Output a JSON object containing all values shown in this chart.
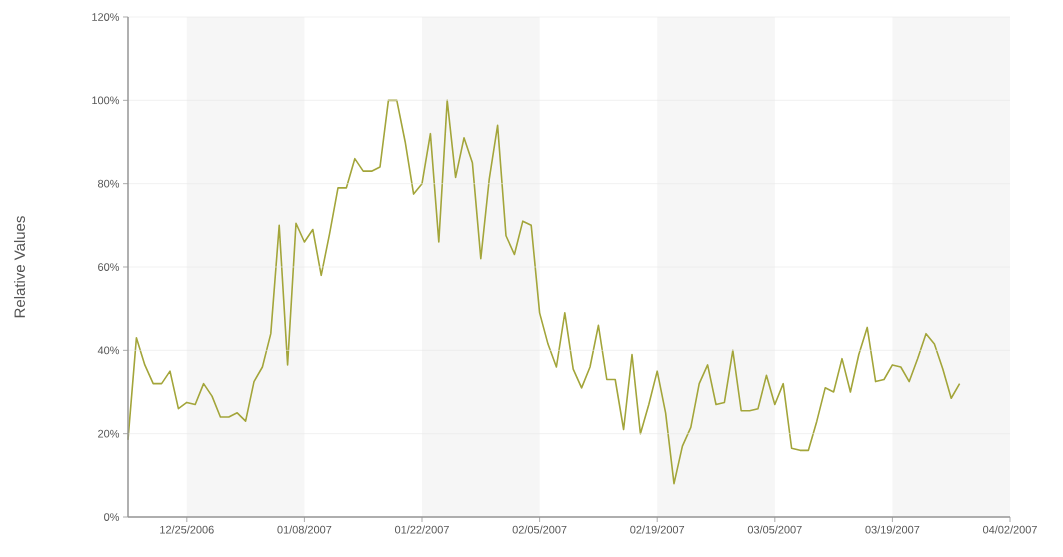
{
  "chart_data": {
    "type": "line",
    "ylabel": "Relative Values",
    "x": [
      "2006-12-18",
      "2006-12-19",
      "2006-12-20",
      "2006-12-21",
      "2006-12-22",
      "2006-12-23",
      "2006-12-24",
      "2006-12-25",
      "2006-12-26",
      "2006-12-27",
      "2006-12-28",
      "2006-12-29",
      "2006-12-30",
      "2006-12-31",
      "2007-01-01",
      "2007-01-02",
      "2007-01-03",
      "2007-01-04",
      "2007-01-05",
      "2007-01-06",
      "2007-01-07",
      "2007-01-08",
      "2007-01-09",
      "2007-01-10",
      "2007-01-11",
      "2007-01-12",
      "2007-01-13",
      "2007-01-14",
      "2007-01-15",
      "2007-01-16",
      "2007-01-17",
      "2007-01-18",
      "2007-01-19",
      "2007-01-20",
      "2007-01-21",
      "2007-01-22",
      "2007-01-23",
      "2007-01-24",
      "2007-01-25",
      "2007-01-26",
      "2007-01-27",
      "2007-01-28",
      "2007-01-29",
      "2007-01-30",
      "2007-01-31",
      "2007-02-01",
      "2007-02-02",
      "2007-02-03",
      "2007-02-04",
      "2007-02-05",
      "2007-02-06",
      "2007-02-07",
      "2007-02-08",
      "2007-02-09",
      "2007-02-10",
      "2007-02-11",
      "2007-02-12",
      "2007-02-13",
      "2007-02-14",
      "2007-02-15",
      "2007-02-16",
      "2007-02-17",
      "2007-02-18",
      "2007-02-19",
      "2007-02-20",
      "2007-02-21",
      "2007-02-22",
      "2007-02-23",
      "2007-02-24",
      "2007-02-25",
      "2007-02-26",
      "2007-02-27",
      "2007-02-28",
      "2007-03-01",
      "2007-03-02",
      "2007-03-03",
      "2007-03-04",
      "2007-03-05",
      "2007-03-06",
      "2007-03-07",
      "2007-03-08",
      "2007-03-09",
      "2007-03-10",
      "2007-03-11",
      "2007-03-12",
      "2007-03-13",
      "2007-03-14",
      "2007-03-15",
      "2007-03-16",
      "2007-03-17",
      "2007-03-18",
      "2007-03-19",
      "2007-03-20",
      "2007-03-21",
      "2007-03-22",
      "2007-03-23",
      "2007-03-24",
      "2007-03-25",
      "2007-03-26",
      "2007-03-27"
    ],
    "series": [
      {
        "color": "#a3a53a",
        "values": [
          18.5,
          43,
          36.5,
          32,
          32,
          35,
          26,
          27.5,
          27,
          32,
          29,
          24,
          24,
          25,
          23,
          32.5,
          36,
          44,
          70,
          36.5,
          70.5,
          66,
          69,
          58,
          68,
          79,
          79,
          86,
          83,
          83,
          84,
          100,
          100,
          90,
          77.5,
          80,
          92,
          66,
          100,
          81.5,
          91,
          85,
          62,
          81,
          94,
          67.5,
          63,
          71,
          70,
          49,
          41.5,
          36,
          49,
          35.5,
          31,
          36,
          46,
          33,
          33,
          21,
          39,
          20,
          27,
          35,
          25,
          8,
          17,
          21.5,
          32,
          36.5,
          27,
          27.5,
          40,
          25.5,
          25.5,
          26,
          34,
          27,
          32,
          16.5,
          16,
          16,
          23,
          31,
          30,
          38,
          30,
          39,
          45.5,
          32.5,
          33,
          36.5,
          36,
          32.5,
          38,
          44,
          41.5,
          35.5,
          28.5,
          32
        ]
      }
    ],
    "xlim": [
      "2006-12-18",
      "2007-04-02"
    ],
    "xticks": [
      {
        "value": "2006-12-25",
        "label": "12/25/2006"
      },
      {
        "value": "2007-01-08",
        "label": "01/08/2007"
      },
      {
        "value": "2007-01-22",
        "label": "01/22/2007"
      },
      {
        "value": "2007-02-05",
        "label": "02/05/2007"
      },
      {
        "value": "2007-02-19",
        "label": "02/19/2007"
      },
      {
        "value": "2007-03-05",
        "label": "03/05/2007"
      },
      {
        "value": "2007-03-19",
        "label": "03/19/2007"
      },
      {
        "value": "2007-04-02",
        "label": "04/02/2007"
      }
    ],
    "ylim": [
      0,
      120
    ],
    "yticks": [
      {
        "value": 0,
        "label": "0%"
      },
      {
        "value": 20,
        "label": "20%"
      },
      {
        "value": 40,
        "label": "40%"
      },
      {
        "value": 60,
        "label": "60%"
      },
      {
        "value": 80,
        "label": "80%"
      },
      {
        "value": 100,
        "label": "100%"
      },
      {
        "value": 120,
        "label": "120%"
      }
    ],
    "bands": [
      {
        "axis": "x",
        "from": "2006-12-25",
        "to": "2007-01-08",
        "color": "#f6f6f6"
      },
      {
        "axis": "x",
        "from": "2007-01-22",
        "to": "2007-02-05",
        "color": "#f6f6f6"
      },
      {
        "axis": "x",
        "from": "2007-02-19",
        "to": "2007-03-05",
        "color": "#f6f6f6"
      },
      {
        "axis": "x",
        "from": "2007-03-19",
        "to": "2007-04-02",
        "color": "#f6f6f6"
      }
    ],
    "grid": "y"
  }
}
